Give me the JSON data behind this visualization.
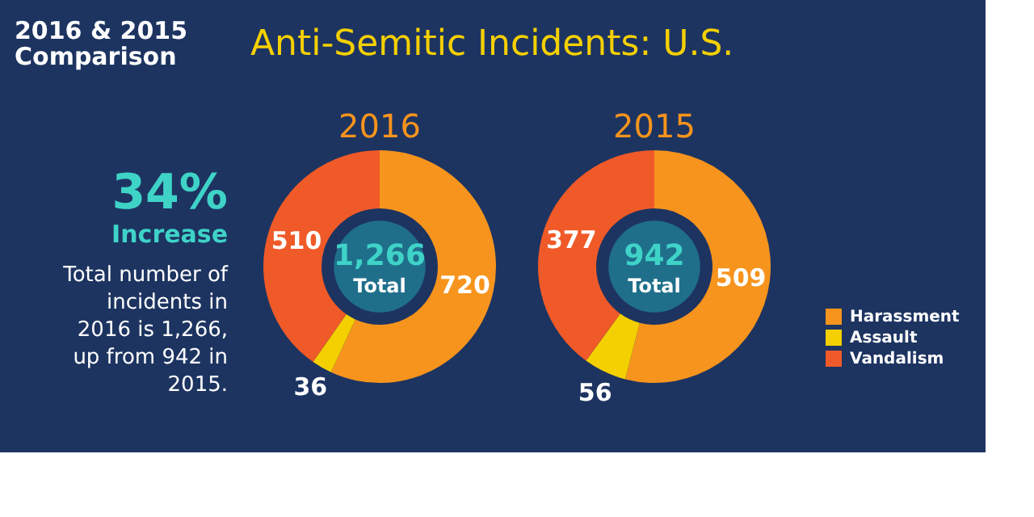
{
  "chart_data": [
    {
      "type": "other",
      "title": "Anti-Semitic Incidents: U.S.",
      "subtitle": "2016 & 2015 Comparison",
      "annotations": [
        "34%",
        "Increase",
        "Total number of incidents in 2016 is 1,266, up from 942 in 2015."
      ]
    },
    {
      "type": "donut",
      "title": "2016",
      "categories": [
        "Harassment",
        "Assault",
        "Vandalism"
      ],
      "values": [
        720,
        36,
        510
      ],
      "colors": [
        "#f7941d",
        "#f5d000",
        "#f05a28"
      ],
      "data_labels": true,
      "annotations": [
        "1,266",
        "Total"
      ],
      "legend": "bottom right"
    },
    {
      "type": "donut",
      "title": "2015",
      "categories": [
        null,
        null,
        null
      ],
      "values": [
        509,
        56,
        377
      ],
      "colors": [
        "#f7941d",
        "#f5d000",
        "#f05a28"
      ],
      "data_labels": true,
      "annotations": [
        "942",
        "Total"
      ]
    }
  ]
}
